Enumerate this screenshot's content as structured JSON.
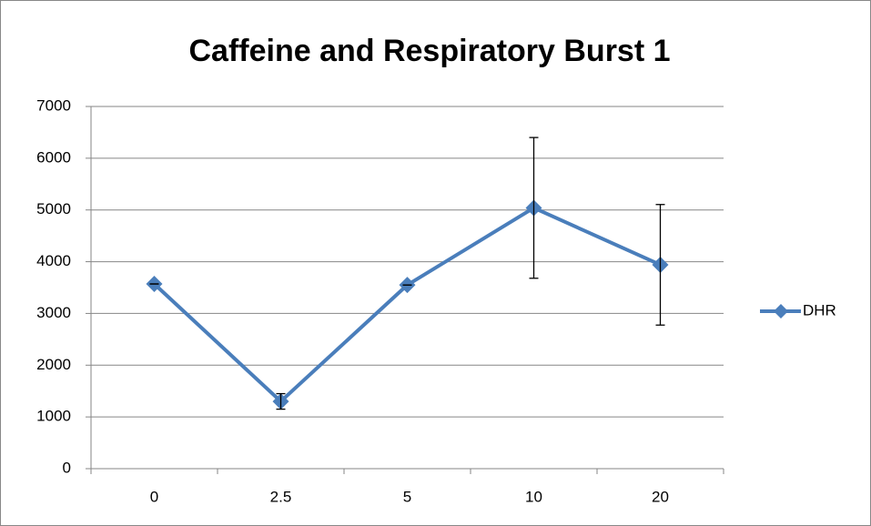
{
  "chart_data": {
    "type": "line",
    "title": "Caffeine and Respiratory Burst 1",
    "categories": [
      "0",
      "2.5",
      "5",
      "10",
      "20"
    ],
    "series": [
      {
        "name": "DHR",
        "color": "#4a7ebb",
        "values": [
          3570,
          1300,
          3550,
          5040,
          3940
        ],
        "errors": [
          0,
          150,
          0,
          1360,
          1165
        ]
      }
    ],
    "ylim": [
      0,
      7000
    ],
    "yticks": [
      0,
      1000,
      2000,
      3000,
      4000,
      5000,
      6000,
      7000
    ],
    "grid": true,
    "legend": "right"
  }
}
